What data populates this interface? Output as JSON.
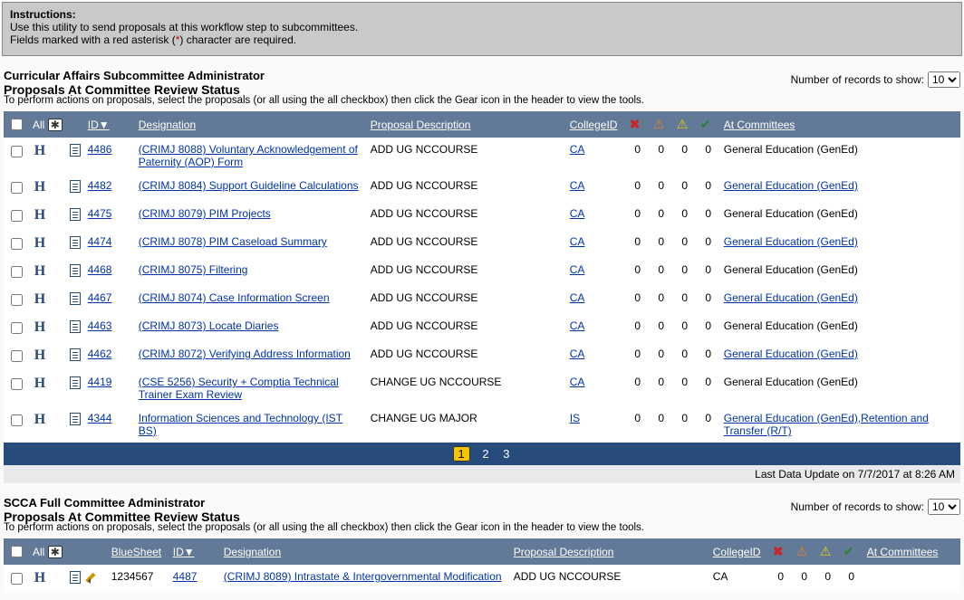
{
  "instructions": {
    "heading": "Instructions:",
    "line1": "Use this utility to send proposals at this workflow step to subcommittees.",
    "line2_pre": "Fields marked with a red asterisk (",
    "line2_ast": "*",
    "line2_post": ") character are required."
  },
  "records_label": "Number of records to show:",
  "records_value": "10",
  "help_text": "To perform actions on proposals, select the proposals (or all using the all checkbox) then click the Gear icon in the header to view the tools.",
  "headers": {
    "all": "All",
    "id": "ID",
    "sort_indicator": "▼",
    "designation": "Designation",
    "proposal_description": "Proposal Description",
    "college_id": "CollegeID",
    "at_committees": "At Committees",
    "blue_sheet": "BlueSheet"
  },
  "icons": {
    "gear": "✱",
    "x": "✖",
    "warn_red": "⚠",
    "warn_yellow": "⚠",
    "check": "✔"
  },
  "pager": {
    "current": "1",
    "p2": "2",
    "p3": "3"
  },
  "timestamp": "Last Data Update on 7/7/2017 at 8:26 AM",
  "section1": {
    "title1": "Curricular Affairs Subcommittee Administrator",
    "title2": "Proposals At Committee Review Status",
    "rows": [
      {
        "id": "4486",
        "designation": "(CRIMJ 8088) Voluntary Acknowledgement of Paternity (AOP) Form",
        "desc": "ADD UG NCCOURSE",
        "college": "CA",
        "c1": "0",
        "c2": "0",
        "c3": "0",
        "c4": "0",
        "committees": "General Education (GenEd)",
        "comm_link": false
      },
      {
        "id": "4482",
        "designation": "(CRIMJ 8084) Support Guideline Calculations",
        "desc": "ADD UG NCCOURSE",
        "college": "CA",
        "c1": "0",
        "c2": "0",
        "c3": "0",
        "c4": "0",
        "committees": "General Education (GenEd)",
        "comm_link": true
      },
      {
        "id": "4475",
        "designation": "(CRIMJ 8079) PIM Projects",
        "desc": "ADD UG NCCOURSE",
        "college": "CA",
        "c1": "0",
        "c2": "0",
        "c3": "0",
        "c4": "0",
        "committees": "General Education (GenEd)",
        "comm_link": false
      },
      {
        "id": "4474",
        "designation": "(CRIMJ 8078) PIM Caseload Summary",
        "desc": "ADD UG NCCOURSE",
        "college": "CA",
        "c1": "0",
        "c2": "0",
        "c3": "0",
        "c4": "0",
        "committees": "General Education (GenEd)",
        "comm_link": true
      },
      {
        "id": "4468",
        "designation": "(CRIMJ 8075) Filtering",
        "desc": "ADD UG NCCOURSE",
        "college": "CA",
        "c1": "0",
        "c2": "0",
        "c3": "0",
        "c4": "0",
        "committees": "General Education (GenEd)",
        "comm_link": false
      },
      {
        "id": "4467",
        "designation": "(CRIMJ 8074) Case Information Screen",
        "desc": "ADD UG NCCOURSE",
        "college": "CA",
        "c1": "0",
        "c2": "0",
        "c3": "0",
        "c4": "0",
        "committees": "General Education (GenEd)",
        "comm_link": true
      },
      {
        "id": "4463",
        "designation": "(CRIMJ 8073) Locate Diaries",
        "desc": "ADD UG NCCOURSE",
        "college": "CA",
        "c1": "0",
        "c2": "0",
        "c3": "0",
        "c4": "0",
        "committees": "General Education (GenEd)",
        "comm_link": false
      },
      {
        "id": "4462",
        "designation": "(CRIMJ 8072) Verifying Address Information",
        "desc": "ADD UG NCCOURSE",
        "college": "CA",
        "c1": "0",
        "c2": "0",
        "c3": "0",
        "c4": "0",
        "committees": "General Education (GenEd)",
        "comm_link": true
      },
      {
        "id": "4419",
        "designation": "(CSE 5256) Security + Comptia Technical Trainer Exam Review",
        "desc": "CHANGE UG NCCOURSE",
        "college": "CA",
        "c1": "0",
        "c2": "0",
        "c3": "0",
        "c4": "0",
        "committees": "General Education (GenEd)",
        "comm_link": false
      },
      {
        "id": "4344",
        "designation": "Information Sciences and Technology (IST BS)",
        "desc": "CHANGE UG MAJOR",
        "college": "IS",
        "c1": "0",
        "c2": "0",
        "c3": "0",
        "c4": "0",
        "committees": "General Education (GenEd),Retention and Transfer (R/T)",
        "comm_link": true
      }
    ]
  },
  "section2": {
    "title1": "SCCA Full Committee Administrator",
    "title2": "Proposals At Committee Review Status",
    "rows": [
      {
        "blue": "1234567",
        "id": "4487",
        "designation": "(CRIMJ 8089) Intrastate & Intergovernmental Modification",
        "desc": "ADD UG NCCOURSE",
        "college": "CA",
        "c1": "0",
        "c2": "0",
        "c3": "0",
        "c4": "0",
        "committees": "",
        "comm_link": false
      }
    ]
  }
}
